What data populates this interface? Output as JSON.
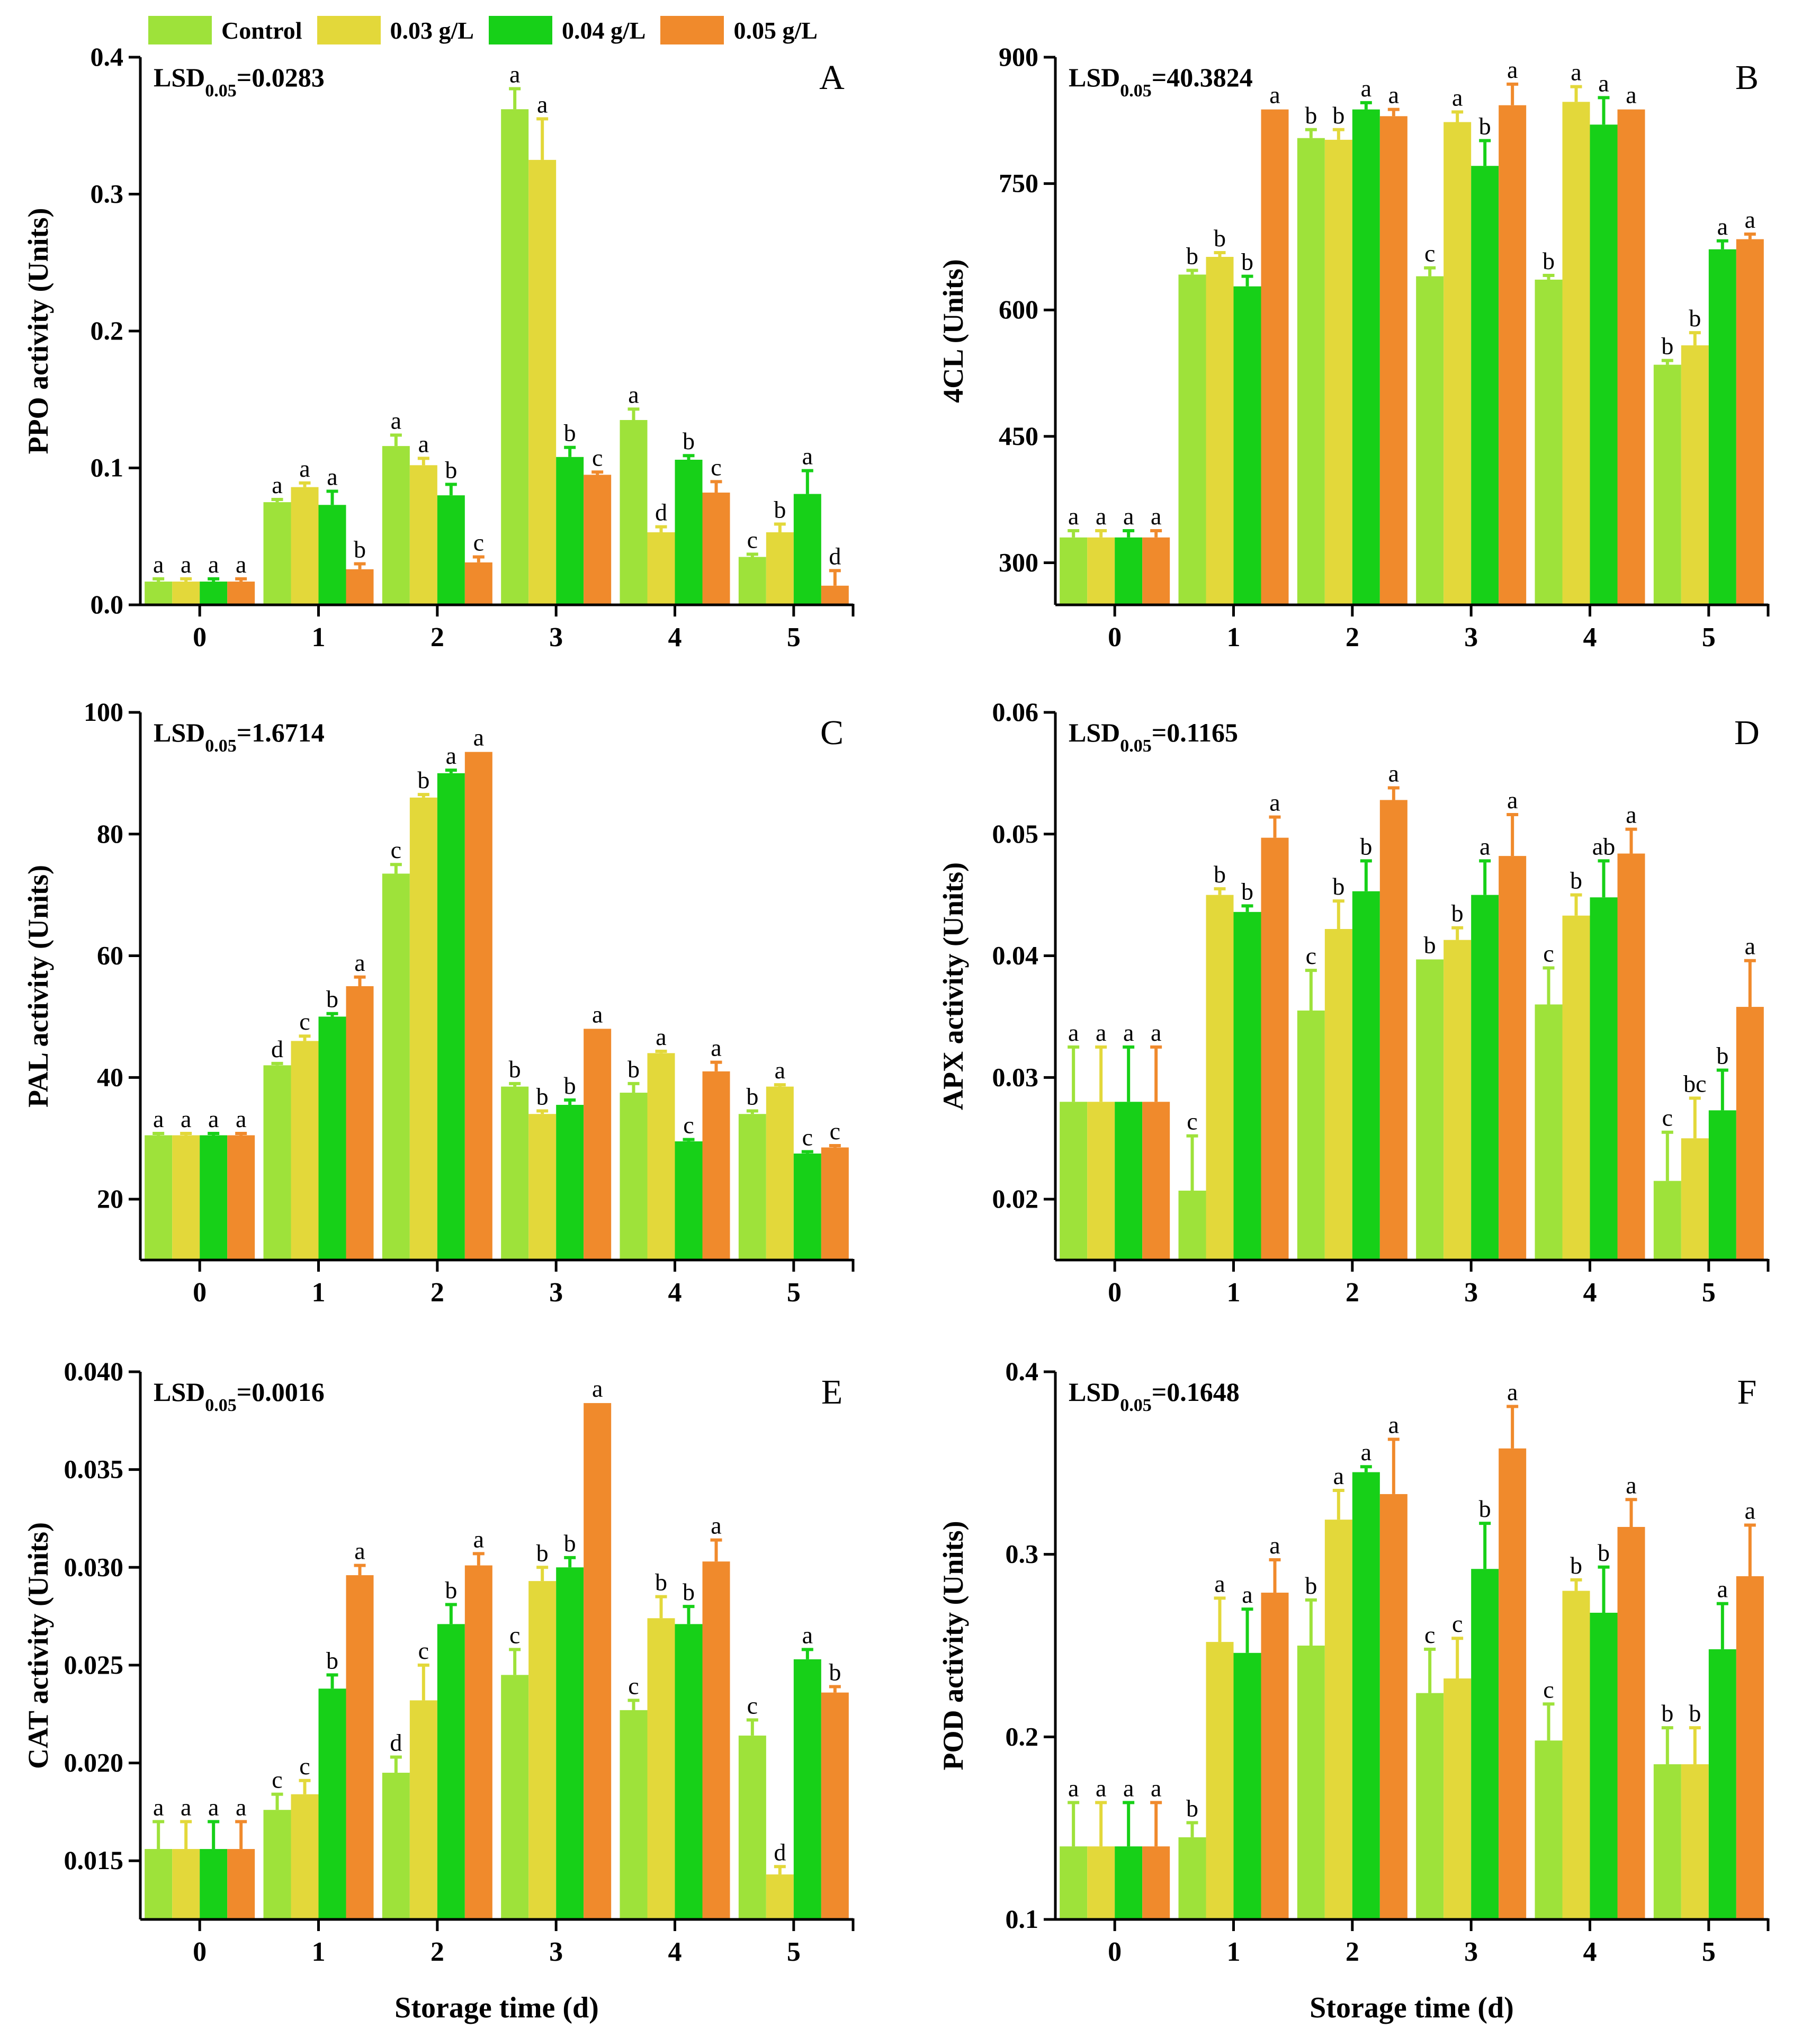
{
  "legend": {
    "items": [
      {
        "label": "Control",
        "color": "#9ee23a"
      },
      {
        "label": "0.03 g/L",
        "color": "#e3d83a"
      },
      {
        "label": "0.04 g/L",
        "color": "#17d018"
      },
      {
        "label": "0.05 g/L",
        "color": "#f08a2c"
      }
    ]
  },
  "chart_data": [
    {
      "type": "bar",
      "panel": "A",
      "ylabel": "PPO activity (Units)",
      "xlabel": "",
      "lsd_prefix": "LSD",
      "lsd_sub": "0.05",
      "lsd_value": "=0.0283",
      "categories": [
        "0",
        "1",
        "2",
        "3",
        "4",
        "5"
      ],
      "ylim": [
        0,
        0.4
      ],
      "yticks": [
        0,
        0.1,
        0.2,
        0.3,
        0.4
      ],
      "ytick_labels": [
        "0.0",
        "0.1",
        "0.2",
        "0.3",
        "0.4"
      ],
      "series": [
        {
          "name": "Control",
          "values": [
            0.017,
            0.075,
            0.116,
            0.362,
            0.135,
            0.035
          ],
          "errors": [
            0.002,
            0.002,
            0.008,
            0.015,
            0.008,
            0.002
          ],
          "letters": [
            "a",
            "a",
            "a",
            "a",
            "a",
            "c"
          ]
        },
        {
          "name": "0.03 g/L",
          "values": [
            0.017,
            0.086,
            0.102,
            0.325,
            0.053,
            0.053
          ],
          "errors": [
            0.002,
            0.003,
            0.005,
            0.03,
            0.004,
            0.006
          ],
          "letters": [
            "a",
            "a",
            "a",
            "a",
            "d",
            "b"
          ]
        },
        {
          "name": "0.04 g/L",
          "values": [
            0.017,
            0.073,
            0.08,
            0.108,
            0.106,
            0.081
          ],
          "errors": [
            0.002,
            0.01,
            0.008,
            0.007,
            0.003,
            0.017
          ],
          "letters": [
            "a",
            "a",
            "b",
            "b",
            "b",
            "a"
          ]
        },
        {
          "name": "0.05 g/L",
          "values": [
            0.017,
            0.026,
            0.031,
            0.095,
            0.082,
            0.014
          ],
          "errors": [
            0.002,
            0.004,
            0.004,
            0.002,
            0.008,
            0.011
          ],
          "letters": [
            "a",
            "b",
            "c",
            "c",
            "c",
            "d"
          ]
        }
      ]
    },
    {
      "type": "bar",
      "panel": "B",
      "ylabel": "4CL (Units)",
      "xlabel": "",
      "lsd_prefix": "LSD",
      "lsd_sub": "0.05",
      "lsd_value": "=40.3824",
      "categories": [
        "0",
        "1",
        "2",
        "3",
        "4",
        "5"
      ],
      "ylim": [
        250,
        900
      ],
      "yticks": [
        300,
        450,
        600,
        750,
        900
      ],
      "ytick_labels": [
        "300",
        "450",
        "600",
        "750",
        "900"
      ],
      "series": [
        {
          "name": "Control",
          "values": [
            330,
            642,
            804,
            640,
            636,
            535
          ],
          "errors": [
            8,
            5,
            10,
            10,
            5,
            5
          ],
          "letters": [
            "a",
            "b",
            "b",
            "c",
            "b",
            "b"
          ]
        },
        {
          "name": "0.03 g/L",
          "values": [
            330,
            663,
            802,
            823,
            847,
            558
          ],
          "errors": [
            8,
            5,
            12,
            12,
            18,
            15
          ],
          "letters": [
            "a",
            "b",
            "b",
            "a",
            "a",
            "b"
          ]
        },
        {
          "name": "0.04 g/L",
          "values": [
            330,
            628,
            838,
            771,
            820,
            672
          ],
          "errors": [
            8,
            12,
            8,
            30,
            32,
            10
          ],
          "letters": [
            "a",
            "b",
            "a",
            "b",
            "a",
            "a"
          ]
        },
        {
          "name": "0.05 g/L",
          "values": [
            330,
            838,
            830,
            843,
            838,
            684
          ],
          "errors": [
            8,
            0,
            8,
            25,
            0,
            6
          ],
          "letters": [
            "a",
            "a",
            "a",
            "a",
            "a",
            "a"
          ]
        }
      ]
    },
    {
      "type": "bar",
      "panel": "C",
      "ylabel": "PAL activity (Units)",
      "xlabel": "",
      "lsd_prefix": "LSD",
      "lsd_sub": "0.05",
      "lsd_value": "=1.6714",
      "categories": [
        "0",
        "1",
        "2",
        "3",
        "4",
        "5"
      ],
      "ylim": [
        10,
        100
      ],
      "yticks": [
        20,
        40,
        60,
        80,
        100
      ],
      "ytick_labels": [
        "20",
        "40",
        "60",
        "80",
        "100"
      ],
      "series": [
        {
          "name": "Control",
          "values": [
            30.5,
            42,
            73.5,
            38.5,
            37.5,
            34
          ],
          "errors": [
            0.3,
            0.3,
            1.5,
            0.5,
            1.5,
            0.5
          ],
          "letters": [
            "a",
            "d",
            "c",
            "b",
            "b",
            "b"
          ]
        },
        {
          "name": "0.03 g/L",
          "values": [
            30.5,
            46,
            86,
            34,
            44,
            38.5
          ],
          "errors": [
            0.3,
            0.8,
            0.5,
            0.5,
            0.3,
            0.3
          ],
          "letters": [
            "a",
            "c",
            "b",
            "b",
            "a",
            "a"
          ]
        },
        {
          "name": "0.04 g/L",
          "values": [
            30.5,
            50,
            90,
            35.5,
            29.5,
            27.5
          ],
          "errors": [
            0.3,
            0.5,
            0.5,
            0.8,
            0.3,
            0.3
          ],
          "letters": [
            "a",
            "b",
            "a",
            "b",
            "c",
            "c"
          ]
        },
        {
          "name": "0.05 g/L",
          "values": [
            30.5,
            55,
            93.5,
            48,
            41,
            28.5
          ],
          "errors": [
            0.3,
            1.5,
            0,
            0,
            1.5,
            0.3
          ],
          "letters": [
            "a",
            "a",
            "a",
            "a",
            "a",
            "c"
          ]
        }
      ]
    },
    {
      "type": "bar",
      "panel": "D",
      "ylabel": "APX activity (Units)",
      "xlabel": "",
      "lsd_prefix": "LSD",
      "lsd_sub": "0.05",
      "lsd_value": "=0.1165",
      "categories": [
        "0",
        "1",
        "2",
        "3",
        "4",
        "5"
      ],
      "ylim": [
        0.015,
        0.06
      ],
      "yticks": [
        0.02,
        0.03,
        0.04,
        0.05,
        0.06
      ],
      "ytick_labels": [
        "0.02",
        "0.03",
        "0.04",
        "0.05",
        "0.06"
      ],
      "series": [
        {
          "name": "Control",
          "values": [
            0.028,
            0.0207,
            0.0355,
            0.0397,
            0.036,
            0.0215
          ],
          "errors": [
            0.0045,
            0.0045,
            0.0033,
            0,
            0.003,
            0.004
          ],
          "letters": [
            "a",
            "c",
            "c",
            "b",
            "c",
            "c"
          ]
        },
        {
          "name": "0.03 g/L",
          "values": [
            0.028,
            0.045,
            0.0422,
            0.0413,
            0.0433,
            0.025
          ],
          "errors": [
            0.0045,
            0.0005,
            0.0023,
            0.001,
            0.0017,
            0.0033
          ],
          "letters": [
            "a",
            "b",
            "b",
            "b",
            "b",
            "bc"
          ]
        },
        {
          "name": "0.04 g/L",
          "values": [
            0.028,
            0.0436,
            0.0453,
            0.045,
            0.0448,
            0.0273
          ],
          "errors": [
            0.0045,
            0.0005,
            0.0025,
            0.0028,
            0.003,
            0.0033
          ],
          "letters": [
            "a",
            "b",
            "b",
            "a",
            "ab",
            "b"
          ]
        },
        {
          "name": "0.05 g/L",
          "values": [
            0.028,
            0.0497,
            0.0528,
            0.0482,
            0.0484,
            0.0358
          ],
          "errors": [
            0.0045,
            0.0017,
            0.001,
            0.0034,
            0.002,
            0.0038
          ],
          "letters": [
            "a",
            "a",
            "a",
            "a",
            "a",
            "a"
          ]
        }
      ]
    },
    {
      "type": "bar",
      "panel": "E",
      "ylabel": "CAT  activity (Units)",
      "xlabel": "Storage time (d)",
      "lsd_prefix": "LSD",
      "lsd_sub": "0.05",
      "lsd_value": "=0.0016",
      "categories": [
        "0",
        "1",
        "2",
        "3",
        "4",
        "5"
      ],
      "ylim": [
        0.012,
        0.04
      ],
      "yticks": [
        0.015,
        0.02,
        0.025,
        0.03,
        0.035,
        0.04
      ],
      "ytick_labels": [
        "0.015",
        "0.020",
        "0.025",
        "0.030",
        "0.035",
        "0.040"
      ],
      "series": [
        {
          "name": "Control",
          "values": [
            0.0156,
            0.0176,
            0.0195,
            0.0245,
            0.0227,
            0.0214
          ],
          "errors": [
            0.0014,
            0.0008,
            0.0008,
            0.0013,
            0.0005,
            0.0008
          ],
          "letters": [
            "a",
            "c",
            "d",
            "c",
            "c",
            "c"
          ]
        },
        {
          "name": "0.03 g/L",
          "values": [
            0.0156,
            0.0184,
            0.0232,
            0.0293,
            0.0274,
            0.0143
          ],
          "errors": [
            0.0014,
            0.0007,
            0.0018,
            0.0007,
            0.0011,
            0.0004
          ],
          "letters": [
            "a",
            "c",
            "c",
            "b",
            "b",
            "d"
          ]
        },
        {
          "name": "0.04 g/L",
          "values": [
            0.0156,
            0.0238,
            0.0271,
            0.03,
            0.0271,
            0.0253
          ],
          "errors": [
            0.0014,
            0.0007,
            0.001,
            0.0005,
            0.0009,
            0.0005
          ],
          "letters": [
            "a",
            "b",
            "b",
            "b",
            "b",
            "a"
          ]
        },
        {
          "name": "0.05 g/L",
          "values": [
            0.0156,
            0.0296,
            0.0301,
            0.0384,
            0.0303,
            0.0236
          ],
          "errors": [
            0.0014,
            0.0005,
            0.0006,
            0,
            0.0011,
            0.0003
          ],
          "letters": [
            "a",
            "a",
            "a",
            "a",
            "a",
            "b"
          ]
        }
      ]
    },
    {
      "type": "bar",
      "panel": "F",
      "ylabel": "POD activity (Units)",
      "xlabel": "Storage time (d)",
      "lsd_prefix": "LSD",
      "lsd_sub": "0.05",
      "lsd_value": "=0.1648",
      "categories": [
        "0",
        "1",
        "2",
        "3",
        "4",
        "5"
      ],
      "ylim": [
        0.1,
        0.4
      ],
      "yticks": [
        0.1,
        0.2,
        0.3,
        0.4
      ],
      "ytick_labels": [
        "0.1",
        "0.2",
        "0.3",
        "0.4"
      ],
      "series": [
        {
          "name": "Control",
          "values": [
            0.14,
            0.145,
            0.25,
            0.224,
            0.198,
            0.185
          ],
          "errors": [
            0.024,
            0.008,
            0.025,
            0.024,
            0.02,
            0.02
          ],
          "letters": [
            "a",
            "b",
            "b",
            "c",
            "c",
            "b"
          ]
        },
        {
          "name": "0.03 g/L",
          "values": [
            0.14,
            0.252,
            0.319,
            0.232,
            0.28,
            0.185
          ],
          "errors": [
            0.024,
            0.024,
            0.016,
            0.022,
            0.006,
            0.02
          ],
          "letters": [
            "a",
            "a",
            "a",
            "c",
            "b",
            "b"
          ]
        },
        {
          "name": "0.04 g/L",
          "values": [
            0.14,
            0.246,
            0.345,
            0.292,
            0.268,
            0.248
          ],
          "errors": [
            0.024,
            0.024,
            0.003,
            0.025,
            0.025,
            0.025
          ],
          "letters": [
            "a",
            "a",
            "a",
            "b",
            "b",
            "a"
          ]
        },
        {
          "name": "0.05 g/L",
          "values": [
            0.14,
            0.279,
            0.333,
            0.358,
            0.315,
            0.288
          ],
          "errors": [
            0.024,
            0.018,
            0.03,
            0.023,
            0.015,
            0.028
          ],
          "letters": [
            "a",
            "a",
            "a",
            "a",
            "a",
            "a"
          ]
        }
      ]
    }
  ]
}
